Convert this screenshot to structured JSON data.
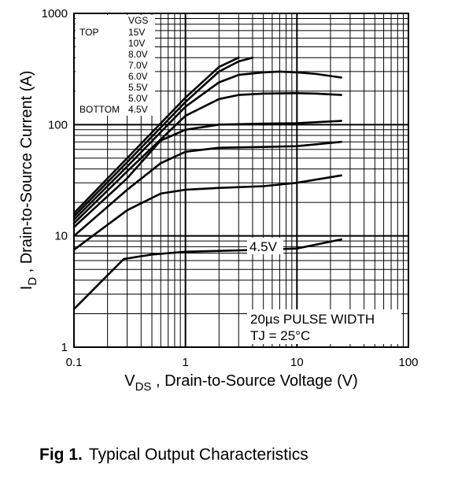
{
  "caption": {
    "prefix": "Fig 1.",
    "title": "Typical Output Characteristics"
  },
  "chart_data": {
    "type": "line",
    "x_scale": "log",
    "y_scale": "log",
    "xlim": [
      0.1,
      100
    ],
    "ylim": [
      1,
      1000
    ],
    "grid": true,
    "xlabel": {
      "main": "V",
      "sub": "DS",
      "rest": " , Drain-to-Source Voltage (V)"
    },
    "ylabel": {
      "main": "I",
      "sub": "D",
      "rest": " ,  Drain-to-Source Current (A)"
    },
    "x_ticks": [
      {
        "value": 0.1,
        "label": "0.1"
      },
      {
        "value": 1,
        "label": "1"
      },
      {
        "value": 10,
        "label": "10"
      },
      {
        "value": 100,
        "label": "100"
      }
    ],
    "y_ticks": [
      {
        "value": 1,
        "label": "1"
      },
      {
        "value": 10,
        "label": "10"
      },
      {
        "value": 100,
        "label": "100"
      },
      {
        "value": 1000,
        "label": "1000"
      }
    ],
    "legend": {
      "placement": "top-left",
      "header": "VGS",
      "top_label": "TOP",
      "bottom_label": "BOTTOM",
      "entries": [
        "15V",
        "10V",
        "8.0V",
        "7.0V",
        "6.0V",
        "5.5V",
        "5.0V",
        "4.5V"
      ]
    },
    "annotations": {
      "curve_label": "4.5V",
      "pulse_width": "20µs PULSE WIDTH",
      "tj": "TJ = 25°C"
    },
    "series": [
      {
        "x": [
          0.1,
          0.3,
          1,
          2,
          3
        ],
        "y": [
          16,
          50,
          175,
          330,
          400
        ]
      },
      {
        "x": [
          0.1,
          0.3,
          1,
          2,
          3,
          4
        ],
        "y": [
          15,
          46,
          160,
          300,
          370,
          400
        ]
      },
      {
        "x": [
          0.1,
          0.3,
          1,
          2,
          3,
          5,
          7,
          10,
          15,
          25
        ],
        "y": [
          14,
          42,
          145,
          240,
          280,
          295,
          300,
          295,
          285,
          265
        ]
      },
      {
        "x": [
          0.1,
          0.3,
          1,
          2,
          3,
          5,
          10,
          15,
          25
        ],
        "y": [
          13,
          38,
          120,
          170,
          185,
          190,
          192,
          190,
          185
        ]
      },
      {
        "x": [
          0.1,
          0.3,
          0.6,
          1,
          2,
          5,
          10,
          25
        ],
        "y": [
          12,
          33,
          72,
          90,
          100,
          102,
          103,
          108
        ]
      },
      {
        "x": [
          0.1,
          0.3,
          0.6,
          1,
          2,
          5,
          10,
          25
        ],
        "y": [
          10,
          26,
          45,
          57,
          62,
          63,
          64,
          70
        ]
      },
      {
        "x": [
          0.1,
          0.3,
          0.6,
          1,
          2,
          5,
          10,
          25
        ],
        "y": [
          7.5,
          17,
          24,
          26,
          27,
          28,
          30,
          35
        ]
      },
      {
        "x": [
          0.1,
          0.28,
          0.5,
          1,
          3,
          10,
          25
        ],
        "y": [
          2.2,
          6.2,
          6.8,
          7.2,
          7.4,
          7.7,
          9.3
        ]
      }
    ]
  }
}
